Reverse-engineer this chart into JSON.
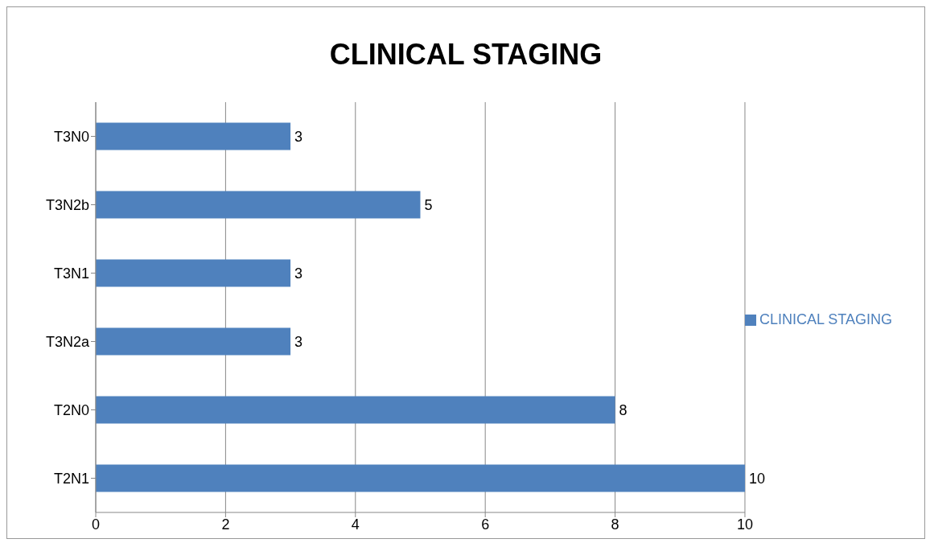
{
  "chart_data": {
    "type": "bar",
    "orientation": "horizontal",
    "title": "CLINICAL STAGING",
    "categories": [
      "T3N0",
      "T3N2b",
      "T3N1",
      "T3N2a",
      "T2N0",
      "T2N1"
    ],
    "series": [
      {
        "name": "CLINICAL STAGING",
        "color": "#4f81bd",
        "values": [
          3,
          5,
          3,
          3,
          8,
          10
        ]
      }
    ],
    "xlim": [
      0,
      10
    ],
    "xticks": [
      0,
      2,
      4,
      6,
      8,
      10
    ],
    "grid": "x",
    "legend": "right",
    "data_labels": true
  }
}
